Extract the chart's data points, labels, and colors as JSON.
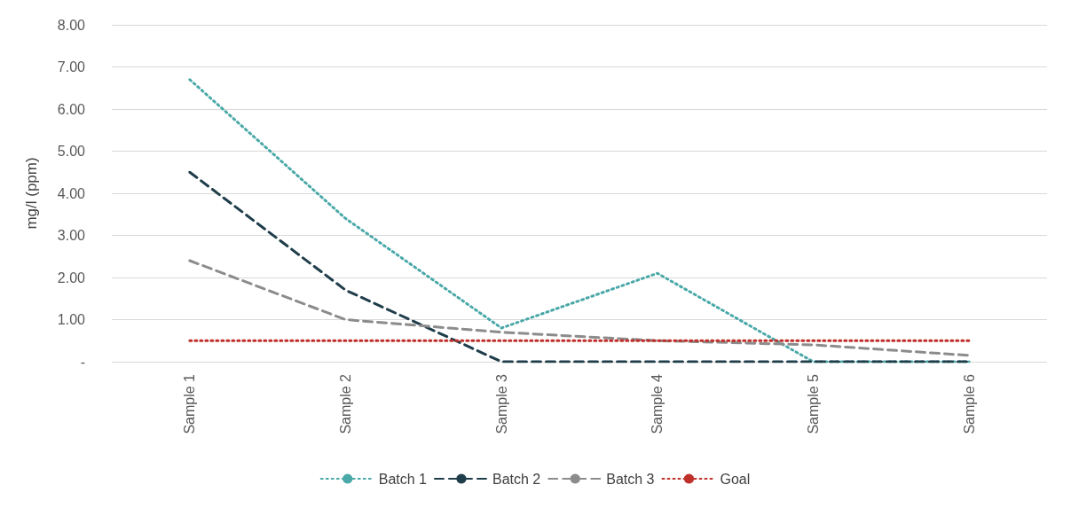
{
  "chart_data": {
    "type": "line",
    "ylabel": "mg/l (ppm)",
    "categories": [
      "Sample 1",
      "Sample 2",
      "Sample 3",
      "Sample 4",
      "Sample 5",
      "Sample 6"
    ],
    "series": [
      {
        "name": "Batch 1",
        "color": "#4aa8a8",
        "line_style": "dotted",
        "values": [
          6.7,
          3.4,
          0.8,
          2.1,
          0,
          0
        ]
      },
      {
        "name": "Batch 2",
        "color": "#1f3d4a",
        "line_style": "dashed",
        "values": [
          4.5,
          1.7,
          0,
          0,
          0,
          0
        ]
      },
      {
        "name": "Batch 3",
        "color": "#8c8c8c",
        "line_style": "dashed",
        "values": [
          2.4,
          1.0,
          0.7,
          0.5,
          0.4,
          0.15
        ]
      },
      {
        "name": "Goal",
        "color": "#c0302b",
        "line_style": "dotted",
        "values": [
          0.5,
          0.5,
          0.5,
          0.5,
          0.5,
          0.5
        ]
      }
    ],
    "ylim": [
      0,
      8
    ],
    "yticks": [
      {
        "value": 0,
        "label": "-"
      },
      {
        "value": 1,
        "label": "1.00"
      },
      {
        "value": 2,
        "label": "2.00"
      },
      {
        "value": 3,
        "label": "3.00"
      },
      {
        "value": 4,
        "label": "4.00"
      },
      {
        "value": 5,
        "label": "5.00"
      },
      {
        "value": 6,
        "label": "6.00"
      },
      {
        "value": 7,
        "label": "7.00"
      },
      {
        "value": 8,
        "label": "8.00"
      }
    ],
    "grid": "y",
    "legend": "bottom",
    "marker": "none"
  }
}
